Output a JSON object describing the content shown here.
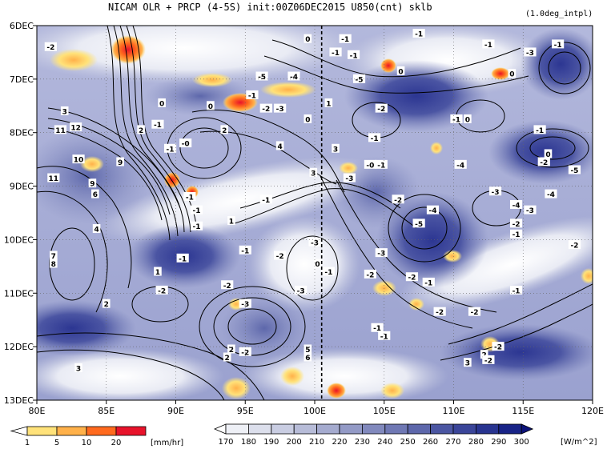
{
  "chart_data": {
    "type": "heatmap",
    "title": "NICAM  OLR + PRCP (4-5S) init:00Z06DEC2015 U850(cnt) sklb",
    "subtitle": "(1.0deg_intpl)",
    "xaxis": {
      "range": [
        80,
        120
      ],
      "ticks": [
        80,
        85,
        90,
        95,
        100,
        105,
        110,
        115,
        120
      ],
      "tick_labels": [
        "80E",
        "85E",
        "90E",
        "95E",
        "100E",
        "105E",
        "110E",
        "115E",
        "120E"
      ]
    },
    "yaxis": {
      "range": [
        6,
        13
      ],
      "reversed": true,
      "ticks": [
        6,
        7,
        8,
        9,
        10,
        11,
        12,
        13
      ],
      "tick_labels": [
        "6DEC",
        "7DEC",
        "8DEC",
        "9DEC",
        "10DEC",
        "11DEC",
        "12DEC",
        "13DEC"
      ]
    },
    "reference_line": {
      "x": 100.5,
      "style": "dashed"
    },
    "grid": "dotted",
    "precip_colorbar": {
      "values": [
        "1",
        "5",
        "10",
        "20"
      ],
      "unit": "[mm/hr]",
      "colors": [
        "#ffffff",
        "#ffe27a",
        "#ffb14a",
        "#ff6a1e",
        "#e8132b"
      ]
    },
    "olr_colorbar": {
      "values": [
        "170",
        "180",
        "190",
        "200",
        "210",
        "220",
        "230",
        "240",
        "250",
        "260",
        "270",
        "280",
        "290",
        "300"
      ],
      "unit": "[W/m^2]",
      "colors": [
        "#ffffff",
        "#eef0f6",
        "#dcdfec",
        "#c9cde2",
        "#b7bcd8",
        "#a5abcf",
        "#939ac6",
        "#8189bd",
        "#6f78b4",
        "#5d67ab",
        "#4b56a2",
        "#3a4599",
        "#283490",
        "#182387",
        "#0d137a"
      ]
    },
    "contour_labels": [
      {
        "x": 99.5,
        "y": 6.25,
        "t": "0"
      },
      {
        "x": 102.2,
        "y": 6.25,
        "t": "-1"
      },
      {
        "x": 107.5,
        "y": 6.15,
        "t": "-1"
      },
      {
        "x": 112.5,
        "y": 6.35,
        "t": "-1"
      },
      {
        "x": 115.5,
        "y": 6.5,
        "t": "-3"
      },
      {
        "x": 117.5,
        "y": 6.35,
        "t": "-1"
      },
      {
        "x": 81.0,
        "y": 6.4,
        "t": "-2"
      },
      {
        "x": 96.2,
        "y": 6.95,
        "t": "-5"
      },
      {
        "x": 98.5,
        "y": 6.95,
        "t": "-4"
      },
      {
        "x": 102.8,
        "y": 6.55,
        "t": "-1"
      },
      {
        "x": 103.2,
        "y": 7.0,
        "t": "-5"
      },
      {
        "x": 101.5,
        "y": 6.5,
        "t": "-1"
      },
      {
        "x": 106.2,
        "y": 6.85,
        "t": "0"
      },
      {
        "x": 114.2,
        "y": 6.9,
        "t": "0"
      },
      {
        "x": 95.5,
        "y": 7.3,
        "t": "-1"
      },
      {
        "x": 89.0,
        "y": 7.45,
        "t": "0"
      },
      {
        "x": 92.5,
        "y": 7.5,
        "t": "0"
      },
      {
        "x": 96.5,
        "y": 7.55,
        "t": "-2"
      },
      {
        "x": 97.5,
        "y": 7.55,
        "t": "-3"
      },
      {
        "x": 99.5,
        "y": 7.75,
        "t": "0"
      },
      {
        "x": 101.0,
        "y": 7.45,
        "t": "1"
      },
      {
        "x": 104.8,
        "y": 7.55,
        "t": "-2"
      },
      {
        "x": 110.2,
        "y": 7.75,
        "t": "-1"
      },
      {
        "x": 111.0,
        "y": 7.75,
        "t": "0"
      },
      {
        "x": 82.0,
        "y": 7.6,
        "t": "3"
      },
      {
        "x": 81.7,
        "y": 7.95,
        "t": "11"
      },
      {
        "x": 82.8,
        "y": 7.9,
        "t": "12"
      },
      {
        "x": 87.5,
        "y": 7.95,
        "t": "2"
      },
      {
        "x": 88.7,
        "y": 7.85,
        "t": "-1"
      },
      {
        "x": 93.5,
        "y": 7.95,
        "t": "2"
      },
      {
        "x": 89.6,
        "y": 8.3,
        "t": "-1"
      },
      {
        "x": 90.7,
        "y": 8.2,
        "t": "-0"
      },
      {
        "x": 97.5,
        "y": 8.25,
        "t": "4"
      },
      {
        "x": 101.5,
        "y": 8.3,
        "t": "3"
      },
      {
        "x": 104.3,
        "y": 8.1,
        "t": "-1"
      },
      {
        "x": 116.2,
        "y": 7.95,
        "t": "-1"
      },
      {
        "x": 116.8,
        "y": 8.4,
        "t": "0"
      },
      {
        "x": 83.0,
        "y": 8.5,
        "t": "10"
      },
      {
        "x": 81.2,
        "y": 8.85,
        "t": "11"
      },
      {
        "x": 84.0,
        "y": 8.95,
        "t": "9"
      },
      {
        "x": 86.0,
        "y": 8.55,
        "t": "9"
      },
      {
        "x": 99.9,
        "y": 8.75,
        "t": "3"
      },
      {
        "x": 102.5,
        "y": 8.85,
        "t": "-3"
      },
      {
        "x": 104.0,
        "y": 8.6,
        "t": "-0"
      },
      {
        "x": 104.8,
        "y": 8.6,
        "t": "-1"
      },
      {
        "x": 110.5,
        "y": 8.6,
        "t": "-4"
      },
      {
        "x": 116.5,
        "y": 8.55,
        "t": "-2"
      },
      {
        "x": 118.7,
        "y": 8.7,
        "t": "-5"
      },
      {
        "x": 84.2,
        "y": 9.15,
        "t": "6"
      },
      {
        "x": 91.0,
        "y": 9.2,
        "t": "-1"
      },
      {
        "x": 91.5,
        "y": 9.45,
        "t": "-1"
      },
      {
        "x": 96.5,
        "y": 9.25,
        "t": "-1"
      },
      {
        "x": 106.0,
        "y": 9.25,
        "t": "-2"
      },
      {
        "x": 108.5,
        "y": 9.45,
        "t": "-4"
      },
      {
        "x": 113.0,
        "y": 9.1,
        "t": "-3"
      },
      {
        "x": 114.5,
        "y": 9.35,
        "t": "-4"
      },
      {
        "x": 115.5,
        "y": 9.45,
        "t": "-3"
      },
      {
        "x": 117.0,
        "y": 9.15,
        "t": "-4"
      },
      {
        "x": 84.3,
        "y": 9.8,
        "t": "4"
      },
      {
        "x": 91.5,
        "y": 9.75,
        "t": "-1"
      },
      {
        "x": 94.0,
        "y": 9.65,
        "t": "1"
      },
      {
        "x": 107.5,
        "y": 9.7,
        "t": "-5"
      },
      {
        "x": 114.5,
        "y": 9.7,
        "t": "-2"
      },
      {
        "x": 114.5,
        "y": 9.9,
        "t": "-1"
      },
      {
        "x": 81.2,
        "y": 10.3,
        "t": "7"
      },
      {
        "x": 81.2,
        "y": 10.45,
        "t": "8"
      },
      {
        "x": 90.5,
        "y": 10.35,
        "t": "-1"
      },
      {
        "x": 95.0,
        "y": 10.2,
        "t": "-1"
      },
      {
        "x": 97.5,
        "y": 10.3,
        "t": "-2"
      },
      {
        "x": 100.0,
        "y": 10.05,
        "t": "-3"
      },
      {
        "x": 100.2,
        "y": 10.45,
        "t": "0"
      },
      {
        "x": 104.8,
        "y": 10.25,
        "t": "-3"
      },
      {
        "x": 118.7,
        "y": 10.1,
        "t": "-2"
      },
      {
        "x": 88.7,
        "y": 10.6,
        "t": "1"
      },
      {
        "x": 101.0,
        "y": 10.6,
        "t": "-1"
      },
      {
        "x": 104.0,
        "y": 10.65,
        "t": "-2"
      },
      {
        "x": 107.0,
        "y": 10.7,
        "t": "-2"
      },
      {
        "x": 108.2,
        "y": 10.8,
        "t": "-1"
      },
      {
        "x": 89.0,
        "y": 10.95,
        "t": "-2"
      },
      {
        "x": 93.7,
        "y": 10.85,
        "t": "-2"
      },
      {
        "x": 99.0,
        "y": 10.95,
        "t": "-3"
      },
      {
        "x": 114.5,
        "y": 10.95,
        "t": "-1"
      },
      {
        "x": 95.0,
        "y": 11.2,
        "t": "-3"
      },
      {
        "x": 85.0,
        "y": 11.2,
        "t": "2"
      },
      {
        "x": 109.0,
        "y": 11.35,
        "t": "-2"
      },
      {
        "x": 111.5,
        "y": 11.35,
        "t": "-2"
      },
      {
        "x": 104.5,
        "y": 11.65,
        "t": "-1"
      },
      {
        "x": 105.0,
        "y": 11.8,
        "t": "-1"
      },
      {
        "x": 95.0,
        "y": 12.1,
        "t": "-2"
      },
      {
        "x": 94.0,
        "y": 12.05,
        "t": "2"
      },
      {
        "x": 93.7,
        "y": 12.2,
        "t": "2"
      },
      {
        "x": 99.5,
        "y": 12.05,
        "t": "5"
      },
      {
        "x": 99.5,
        "y": 12.2,
        "t": "6"
      },
      {
        "x": 112.2,
        "y": 12.15,
        "t": "2"
      },
      {
        "x": 112.5,
        "y": 12.25,
        "t": "-2"
      },
      {
        "x": 113.2,
        "y": 12.0,
        "t": "-2"
      },
      {
        "x": 83.0,
        "y": 12.4,
        "t": "3"
      },
      {
        "x": 111.0,
        "y": 12.3,
        "t": "3"
      }
    ]
  }
}
